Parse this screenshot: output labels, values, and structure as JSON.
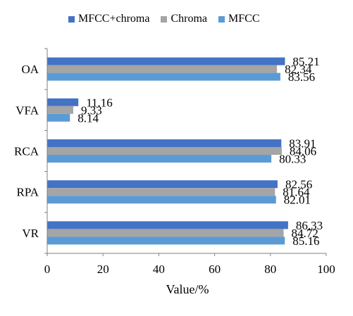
{
  "chart_data": {
    "type": "bar",
    "orientation": "horizontal",
    "categories": [
      "VR",
      "RPA",
      "RCA",
      "VFA",
      "OA"
    ],
    "series": [
      {
        "name": "MFCC+chroma",
        "color": "#4472C4",
        "values": [
          86.33,
          82.56,
          83.91,
          11.16,
          85.21
        ],
        "labels": [
          "86.33",
          "82.56",
          "83.91",
          "11.16",
          "85.21"
        ]
      },
      {
        "name": "Chroma",
        "color": "#A5A5A5",
        "values": [
          84.72,
          81.64,
          84.06,
          9.33,
          82.34
        ],
        "labels": [
          "84.72",
          "81.64",
          "84.06",
          "9.33",
          "82.34"
        ]
      },
      {
        "name": "MFCC",
        "color": "#5B9BD5",
        "values": [
          85.16,
          82.01,
          80.33,
          8.14,
          83.56
        ],
        "labels": [
          "85.16",
          "82.01",
          "80.33",
          "8.14",
          "83.56"
        ]
      }
    ],
    "xlabel": "Value/%",
    "xlim": [
      0,
      100
    ],
    "xticks": [
      "0",
      "20",
      "40",
      "60",
      "80",
      "100"
    ],
    "legend_position": "top",
    "grid": false
  }
}
